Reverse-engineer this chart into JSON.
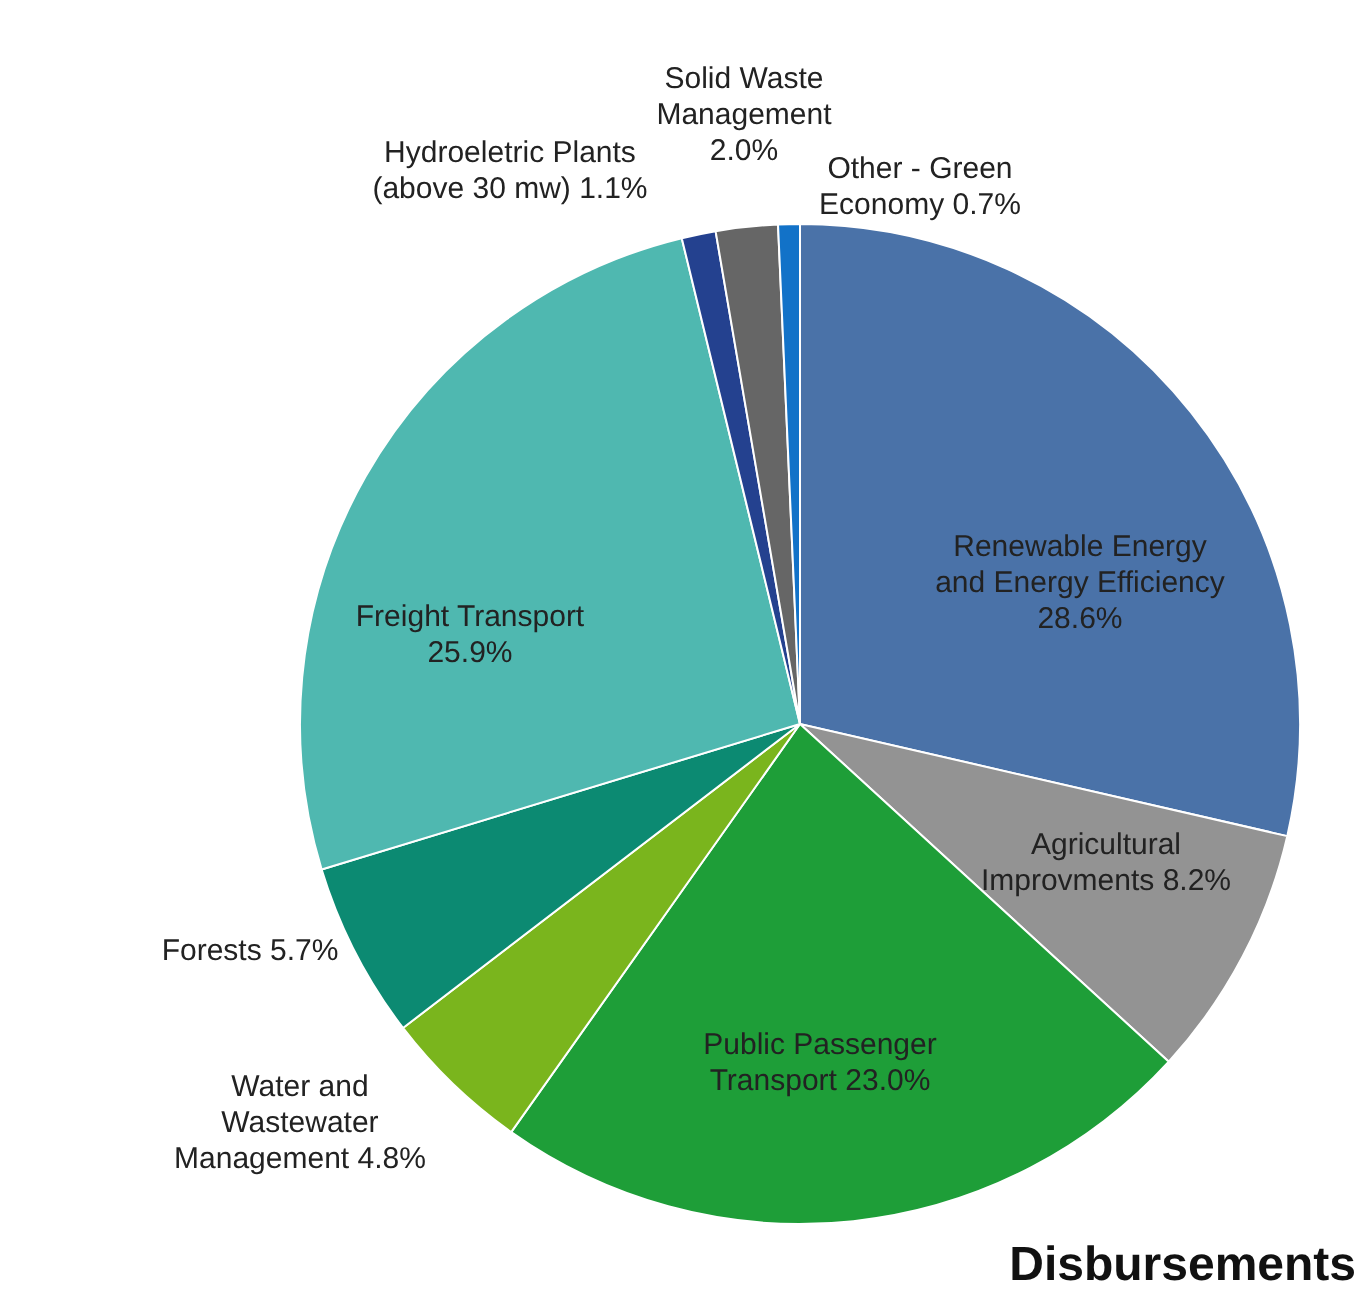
{
  "chart_data": {
    "type": "pie",
    "title": "Disbursements",
    "categories": [
      "Renewable Energy\nand Energy Efficiency",
      "Agricultural\nImprovments",
      "Public Passenger\nTransport",
      "Water and\nWastewater\nManagement",
      "Forests",
      "Freight Transport",
      "Hydroeletric Plants\n(above 30 mw)",
      "Solid Waste\nManagement",
      "Other - Green\nEconomy"
    ],
    "values": [
      28.6,
      8.2,
      23.0,
      4.8,
      5.7,
      25.9,
      1.1,
      2.0,
      0.7
    ],
    "value_labels": [
      "28.6%",
      "8.2%",
      "23.0%",
      "4.8%",
      "5.7%",
      "25.9%",
      "1.1%",
      "2.0%",
      "0.7%"
    ],
    "colors": [
      "#4a72a8",
      "#939393",
      "#1e9e38",
      "#7ab51d",
      "#0c8a72",
      "#4fb8b0",
      "#24418f",
      "#666666",
      "#1272c8"
    ],
    "legend": false
  }
}
